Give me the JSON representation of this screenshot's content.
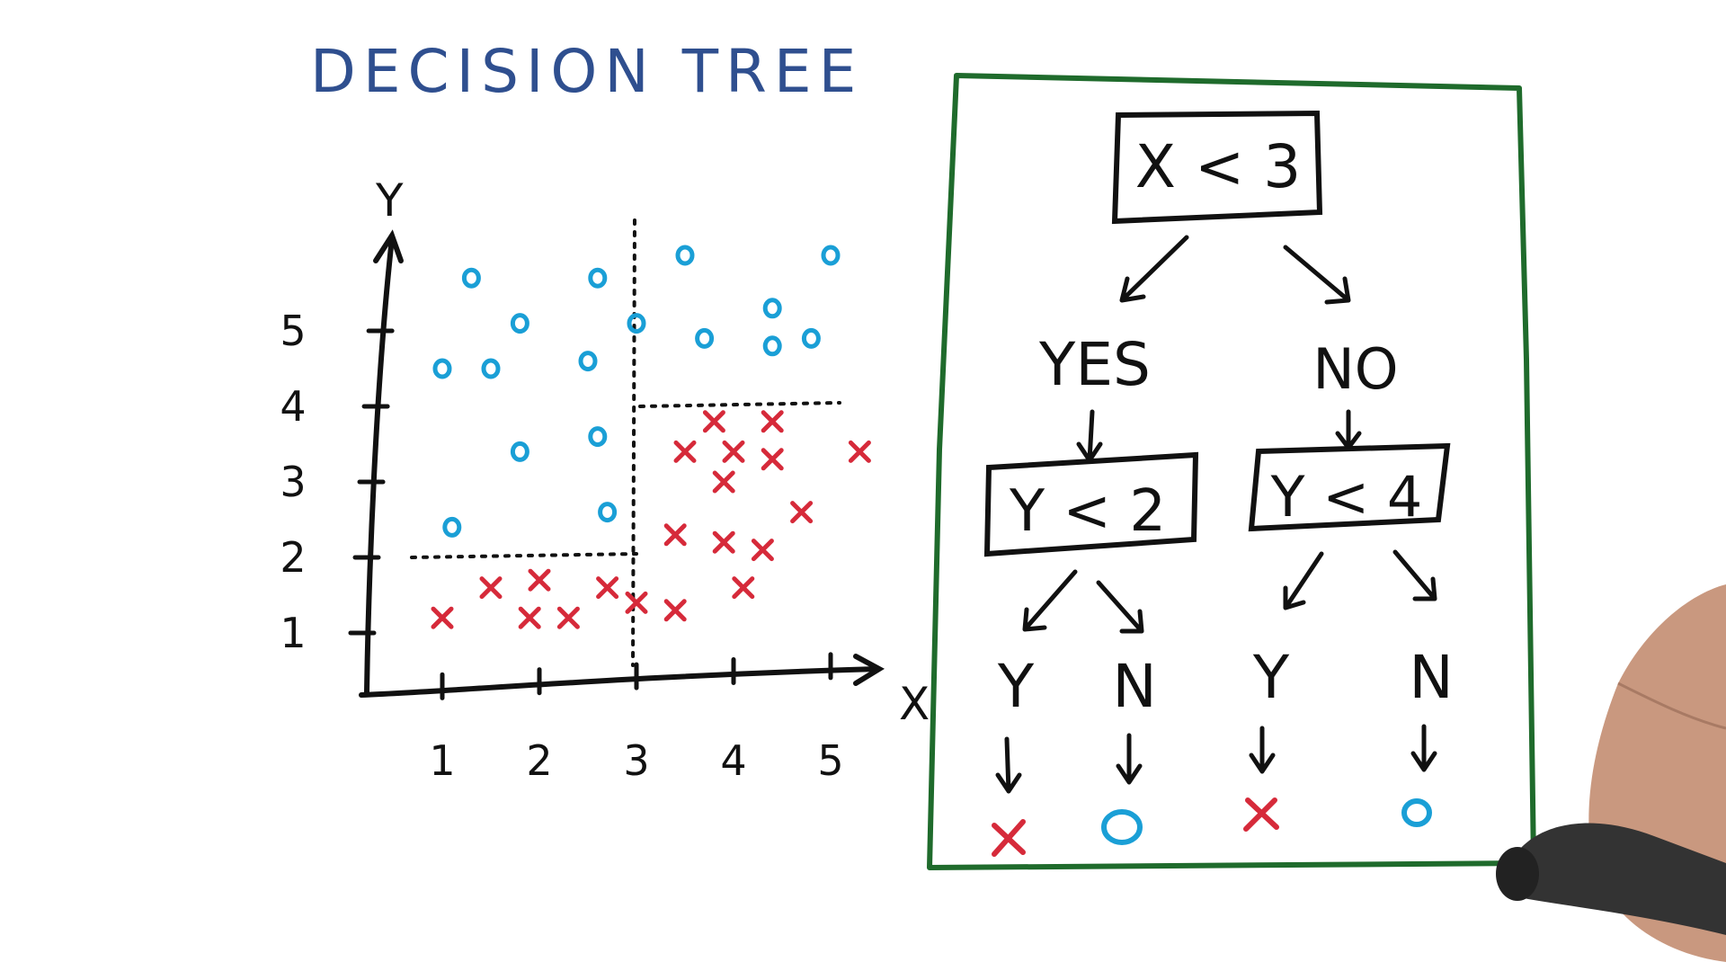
{
  "title": "DECISION TREE",
  "colors": {
    "title": "#2f4f8f",
    "ink": "#111111",
    "circle": "#1a9fd6",
    "cross": "#d62a3a",
    "frame": "#1f6b2c"
  },
  "plot": {
    "x_axis_label": "X",
    "y_axis_label": "Y",
    "x_ticks": [
      "1",
      "2",
      "3",
      "4",
      "5"
    ],
    "y_ticks": [
      "1",
      "2",
      "3",
      "4",
      "5"
    ],
    "splits": [
      {
        "axis": "x",
        "value": 3
      },
      {
        "axis": "y",
        "value": 2,
        "region": "x<3"
      },
      {
        "axis": "y",
        "value": 4,
        "region": "x>=3"
      }
    ],
    "circles": [
      [
        1.3,
        5.7
      ],
      [
        1.8,
        5.1
      ],
      [
        2.6,
        5.7
      ],
      [
        1.0,
        4.5
      ],
      [
        1.5,
        4.5
      ],
      [
        2.5,
        4.6
      ],
      [
        1.8,
        3.4
      ],
      [
        2.6,
        3.6
      ],
      [
        1.1,
        2.4
      ],
      [
        2.7,
        2.6
      ],
      [
        3.0,
        5.1
      ],
      [
        3.5,
        6.0
      ],
      [
        3.7,
        4.9
      ],
      [
        4.4,
        5.3
      ],
      [
        4.4,
        4.8
      ],
      [
        4.8,
        4.9
      ],
      [
        5.0,
        6.0
      ]
    ],
    "crosses": [
      [
        1.0,
        1.2
      ],
      [
        1.5,
        1.6
      ],
      [
        1.9,
        1.2
      ],
      [
        2.0,
        1.7
      ],
      [
        2.3,
        1.2
      ],
      [
        2.7,
        1.6
      ],
      [
        3.0,
        1.4
      ],
      [
        3.4,
        1.3
      ],
      [
        3.4,
        2.3
      ],
      [
        3.9,
        2.2
      ],
      [
        4.1,
        1.6
      ],
      [
        4.3,
        2.1
      ],
      [
        3.5,
        3.4
      ],
      [
        3.8,
        3.8
      ],
      [
        3.9,
        3.0
      ],
      [
        4.0,
        3.4
      ],
      [
        4.4,
        3.3
      ],
      [
        4.4,
        3.8
      ],
      [
        4.7,
        2.6
      ],
      [
        5.3,
        3.4
      ]
    ]
  },
  "tree": {
    "root": "X < 3",
    "yes_label": "YES",
    "no_label": "NO",
    "left_node": "Y < 2",
    "right_node": "Y < 4",
    "leaf_labels": [
      "Y",
      "N",
      "Y",
      "N"
    ],
    "leaf_outcomes": [
      "x",
      "o",
      "x",
      "o"
    ]
  }
}
